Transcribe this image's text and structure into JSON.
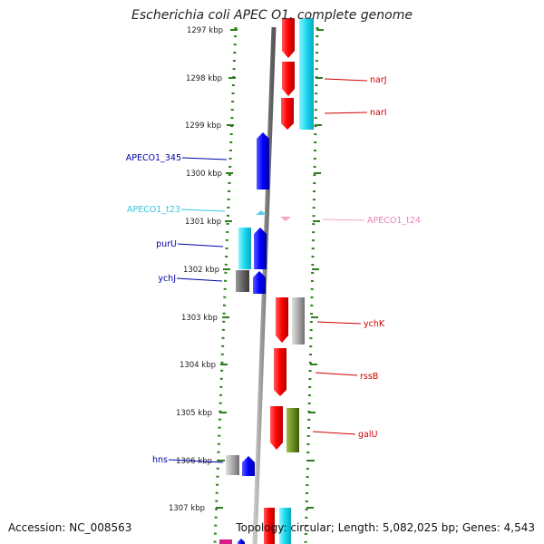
{
  "title": "Escherichia coli APEC O1, complete genome",
  "footer": {
    "accession": "Accession: NC_008563",
    "summary": "Topology: circular; Length: 5,082,025 bp; Genes: 4,543"
  },
  "colors": {
    "background": "#ffffff",
    "backbone": "#8a8a8a",
    "dotted_track": "#2e7d1f",
    "forward_gene": "#ff1a1a",
    "reverse_gene": "#1a1aff",
    "trna_reverse": "#5bd0e8",
    "trna_forward": "#f2a6c8",
    "cyan_gene": "#22d8e8",
    "gray_gene": "#aaaaaa",
    "olive_gene": "#6b8f1f",
    "label_red": "#cc0000",
    "label_blue": "#0000aa"
  },
  "ticks": [
    "1297 kbp",
    "1298 kbp",
    "1299 kbp",
    "1300 kbp",
    "1301 kbp",
    "1302 kbp",
    "1303 kbp",
    "1304 kbp",
    "1305 kbp",
    "1306 kbp",
    "1307 kbp"
  ],
  "labels_right": [
    {
      "text": "narJ",
      "color": "#cc0000"
    },
    {
      "text": "narI",
      "color": "#cc0000"
    },
    {
      "text": "APECO1_t24",
      "color": "#e882b8"
    },
    {
      "text": "ychK",
      "color": "#cc0000"
    },
    {
      "text": "rssB",
      "color": "#cc0000"
    },
    {
      "text": "galU",
      "color": "#cc0000"
    }
  ],
  "labels_left": [
    {
      "text": "APECO1_345",
      "color": "#0000aa"
    },
    {
      "text": "APECO1_t23",
      "color": "#30c8dc"
    },
    {
      "text": "purU",
      "color": "#0000aa"
    },
    {
      "text": "ychJ",
      "color": "#0000aa"
    },
    {
      "text": "hns",
      "color": "#0000aa"
    }
  ]
}
